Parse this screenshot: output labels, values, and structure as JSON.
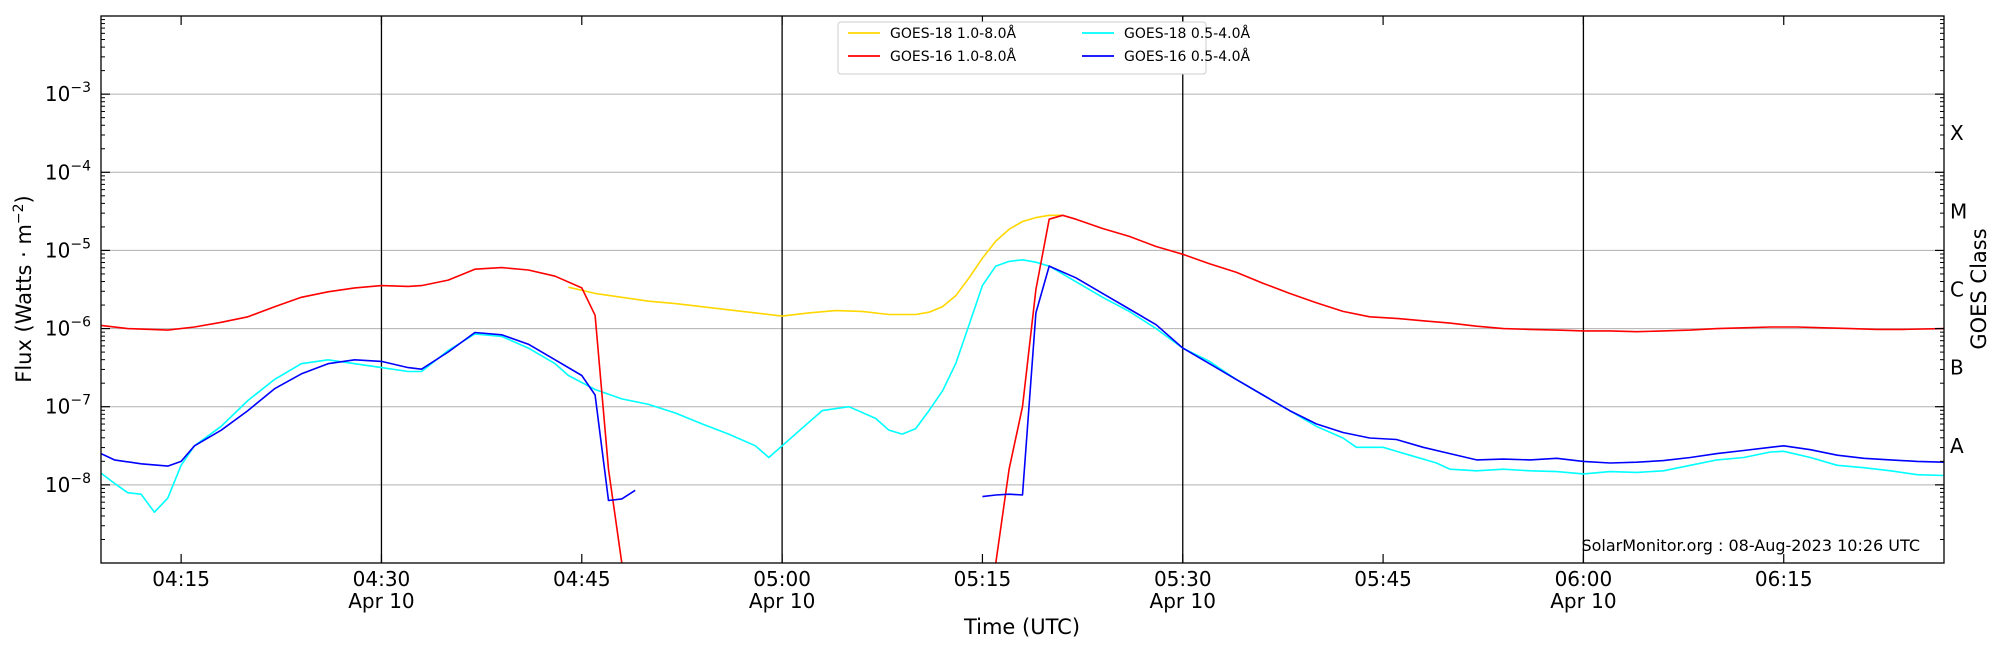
{
  "chart_data": {
    "type": "line",
    "xlabel": "Time (UTC)",
    "ylabel_main": "Flux (Watts · m",
    "ylabel_exp": "−2",
    "ylabel_close": ")",
    "right_label": "GOES Class",
    "credit": "SolarMonitor.org : 08-Aug-2023 10:26 UTC",
    "y_scale": "log",
    "ylim": [
      1e-09,
      0.01
    ],
    "xlim_minutes": [
      "04:09",
      "06:27"
    ],
    "grid": "horizontal at decades; vertical at 30-minute marks",
    "y_ticks": [
      {
        "value": -8,
        "base": "10",
        "exp": "−8"
      },
      {
        "value": -7,
        "base": "10",
        "exp": "−7"
      },
      {
        "value": -6,
        "base": "10",
        "exp": "−6"
      },
      {
        "value": -5,
        "base": "10",
        "exp": "−5"
      },
      {
        "value": -4,
        "base": "10",
        "exp": "−4"
      },
      {
        "value": -3,
        "base": "10",
        "exp": "−3"
      }
    ],
    "x_ticks": [
      {
        "time": "04:15",
        "label": "04:15",
        "date": ""
      },
      {
        "time": "04:30",
        "label": "04:30",
        "date": "Apr 10"
      },
      {
        "time": "04:45",
        "label": "04:45",
        "date": ""
      },
      {
        "time": "05:00",
        "label": "05:00",
        "date": "Apr 10"
      },
      {
        "time": "05:15",
        "label": "05:15",
        "date": ""
      },
      {
        "time": "05:30",
        "label": "05:30",
        "date": "Apr 10"
      },
      {
        "time": "05:45",
        "label": "05:45",
        "date": ""
      },
      {
        "time": "06:00",
        "label": "06:00",
        "date": "Apr 10"
      },
      {
        "time": "06:15",
        "label": "06:15",
        "date": ""
      }
    ],
    "goes_classes": [
      {
        "label": "A",
        "value": -7.5
      },
      {
        "label": "B",
        "value": -6.5
      },
      {
        "label": "C",
        "value": -5.5
      },
      {
        "label": "M",
        "value": -4.5
      },
      {
        "label": "X",
        "value": -3.5
      }
    ],
    "legend_position": "top-center",
    "legend": [
      {
        "name": "GOES-18 1.0-8.0Å",
        "color": "#ffd700"
      },
      {
        "name": "GOES-18 0.5-4.0Å",
        "color": "#00ffff"
      },
      {
        "name": "GOES-16 1.0-8.0Å",
        "color": "#ff0000"
      },
      {
        "name": "GOES-16 0.5-4.0Å",
        "color": "#0000ff"
      }
    ],
    "series": [
      {
        "name": "GOES-18 1.0-8.0Å",
        "color": "#ffd700",
        "points": [
          [
            "04:44",
            -5.47
          ],
          [
            "04:46",
            -5.55
          ],
          [
            "04:48",
            -5.6
          ],
          [
            "04:50",
            -5.65
          ],
          [
            "04:52",
            -5.68
          ],
          [
            "04:54",
            -5.72
          ],
          [
            "04:56",
            -5.76
          ],
          [
            "04:58",
            -5.8
          ],
          [
            "05:00",
            -5.84
          ],
          [
            "05:02",
            -5.8
          ],
          [
            "05:04",
            -5.77
          ],
          [
            "05:06",
            -5.78
          ],
          [
            "05:08",
            -5.82
          ],
          [
            "05:10",
            -5.82
          ],
          [
            "05:11",
            -5.79
          ],
          [
            "05:12",
            -5.72
          ],
          [
            "05:13",
            -5.58
          ],
          [
            "05:14",
            -5.35
          ],
          [
            "05:15",
            -5.1
          ],
          [
            "05:16",
            -4.88
          ],
          [
            "05:17",
            -4.73
          ],
          [
            "05:18",
            -4.63
          ],
          [
            "05:19",
            -4.58
          ],
          [
            "05:20",
            -4.55
          ],
          [
            "05:21",
            -4.55
          ]
        ]
      },
      {
        "name": "GOES-18 0.5-4.0Å",
        "color": "#00ffff",
        "points": [
          [
            "04:09",
            -7.85
          ],
          [
            "04:10",
            -7.98
          ],
          [
            "04:11",
            -8.1
          ],
          [
            "04:12",
            -8.12
          ],
          [
            "04:13",
            -8.35
          ],
          [
            "04:14",
            -8.17
          ],
          [
            "04:15",
            -7.75
          ],
          [
            "04:16",
            -7.5
          ],
          [
            "04:18",
            -7.25
          ],
          [
            "04:20",
            -6.92
          ],
          [
            "04:22",
            -6.65
          ],
          [
            "04:24",
            -6.45
          ],
          [
            "04:26",
            -6.4
          ],
          [
            "04:28",
            -6.45
          ],
          [
            "04:30",
            -6.5
          ],
          [
            "04:32",
            -6.55
          ],
          [
            "04:33",
            -6.55
          ],
          [
            "04:35",
            -6.28
          ],
          [
            "04:37",
            -6.07
          ],
          [
            "04:39",
            -6.1
          ],
          [
            "04:41",
            -6.25
          ],
          [
            "04:43",
            -6.45
          ],
          [
            "04:44",
            -6.6
          ],
          [
            "04:46",
            -6.78
          ],
          [
            "04:48",
            -6.9
          ],
          [
            "04:50",
            -6.97
          ],
          [
            "04:52",
            -7.08
          ],
          [
            "04:54",
            -7.22
          ],
          [
            "04:56",
            -7.35
          ],
          [
            "04:58",
            -7.5
          ],
          [
            "04:59",
            -7.65
          ],
          [
            "05:00",
            -7.5
          ],
          [
            "05:02",
            -7.2
          ],
          [
            "05:03",
            -7.05
          ],
          [
            "05:05",
            -7.0
          ],
          [
            "05:07",
            -7.15
          ],
          [
            "05:08",
            -7.3
          ],
          [
            "05:09",
            -7.35
          ],
          [
            "05:10",
            -7.28
          ],
          [
            "05:11",
            -7.05
          ],
          [
            "05:12",
            -6.8
          ],
          [
            "05:13",
            -6.45
          ],
          [
            "05:14",
            -5.95
          ],
          [
            "05:15",
            -5.45
          ],
          [
            "05:16",
            -5.2
          ],
          [
            "05:17",
            -5.14
          ],
          [
            "05:18",
            -5.12
          ],
          [
            "05:19",
            -5.15
          ],
          [
            "05:20",
            -5.2
          ],
          [
            "05:22",
            -5.4
          ],
          [
            "05:24",
            -5.6
          ],
          [
            "05:26",
            -5.78
          ],
          [
            "05:28",
            -6.0
          ],
          [
            "05:30",
            -6.25
          ],
          [
            "05:32",
            -6.42
          ],
          [
            "05:34",
            -6.65
          ],
          [
            "05:36",
            -6.85
          ],
          [
            "05:38",
            -7.05
          ],
          [
            "05:40",
            -7.25
          ],
          [
            "05:42",
            -7.4
          ],
          [
            "05:43",
            -7.52
          ],
          [
            "05:45",
            -7.52
          ],
          [
            "05:47",
            -7.62
          ],
          [
            "05:49",
            -7.72
          ],
          [
            "05:50",
            -7.8
          ],
          [
            "05:52",
            -7.82
          ],
          [
            "05:54",
            -7.8
          ],
          [
            "05:56",
            -7.82
          ],
          [
            "05:58",
            -7.83
          ],
          [
            "06:00",
            -7.86
          ],
          [
            "06:02",
            -7.83
          ],
          [
            "06:04",
            -7.84
          ],
          [
            "06:06",
            -7.82
          ],
          [
            "06:08",
            -7.75
          ],
          [
            "06:10",
            -7.68
          ],
          [
            "06:12",
            -7.65
          ],
          [
            "06:14",
            -7.58
          ],
          [
            "06:15",
            -7.57
          ],
          [
            "06:17",
            -7.65
          ],
          [
            "06:19",
            -7.75
          ],
          [
            "06:21",
            -7.78
          ],
          [
            "06:23",
            -7.82
          ],
          [
            "06:25",
            -7.87
          ],
          [
            "06:27",
            -7.88
          ]
        ]
      },
      {
        "name": "GOES-16 1.0-8.0Å",
        "color": "#ff0000",
        "points": [
          [
            "04:09",
            -5.96
          ],
          [
            "04:11",
            -6.0
          ],
          [
            "04:14",
            -6.02
          ],
          [
            "04:16",
            -5.98
          ],
          [
            "04:18",
            -5.92
          ],
          [
            "04:20",
            -5.85
          ],
          [
            "04:22",
            -5.72
          ],
          [
            "04:24",
            -5.6
          ],
          [
            "04:26",
            -5.53
          ],
          [
            "04:28",
            -5.48
          ],
          [
            "04:30",
            -5.45
          ],
          [
            "04:32",
            -5.46
          ],
          [
            "04:33",
            -5.45
          ],
          [
            "04:35",
            -5.38
          ],
          [
            "04:37",
            -5.24
          ],
          [
            "04:39",
            -5.22
          ],
          [
            "04:41",
            -5.25
          ],
          [
            "04:43",
            -5.33
          ],
          [
            "04:45",
            -5.48
          ],
          [
            "04:46",
            -5.83
          ],
          [
            "04:47",
            -7.8
          ],
          [
            "04:48",
            -9.0
          ],
          null,
          [
            "05:16",
            -9.0
          ],
          [
            "05:17",
            -7.8
          ],
          [
            "05:18",
            -7.0
          ],
          [
            "05:19",
            -5.5
          ],
          [
            "05:20",
            -4.6
          ],
          [
            "05:21",
            -4.55
          ],
          [
            "05:22",
            -4.6
          ],
          [
            "05:24",
            -4.72
          ],
          [
            "05:26",
            -4.82
          ],
          [
            "05:28",
            -4.95
          ],
          [
            "05:30",
            -5.05
          ],
          [
            "05:32",
            -5.17
          ],
          [
            "05:34",
            -5.28
          ],
          [
            "05:36",
            -5.42
          ],
          [
            "05:38",
            -5.55
          ],
          [
            "05:40",
            -5.67
          ],
          [
            "05:42",
            -5.78
          ],
          [
            "05:44",
            -5.85
          ],
          [
            "05:46",
            -5.87
          ],
          [
            "05:48",
            -5.9
          ],
          [
            "05:50",
            -5.93
          ],
          [
            "05:52",
            -5.97
          ],
          [
            "05:54",
            -6.0
          ],
          [
            "05:56",
            -6.01
          ],
          [
            "05:58",
            -6.02
          ],
          [
            "06:00",
            -6.03
          ],
          [
            "06:02",
            -6.03
          ],
          [
            "06:04",
            -6.04
          ],
          [
            "06:06",
            -6.03
          ],
          [
            "06:08",
            -6.02
          ],
          [
            "06:10",
            -6.0
          ],
          [
            "06:12",
            -5.99
          ],
          [
            "06:14",
            -5.98
          ],
          [
            "06:16",
            -5.98
          ],
          [
            "06:18",
            -5.99
          ],
          [
            "06:20",
            -6.0
          ],
          [
            "06:22",
            -6.01
          ],
          [
            "06:24",
            -6.01
          ],
          [
            "06:27",
            -6.0
          ]
        ]
      },
      {
        "name": "GOES-16 0.5-4.0Å",
        "color": "#0000ff",
        "points": [
          [
            "04:09",
            -7.6
          ],
          [
            "04:10",
            -7.68
          ],
          [
            "04:12",
            -7.73
          ],
          [
            "04:14",
            -7.76
          ],
          [
            "04:15",
            -7.7
          ],
          [
            "04:16",
            -7.5
          ],
          [
            "04:18",
            -7.3
          ],
          [
            "04:20",
            -7.05
          ],
          [
            "04:22",
            -6.77
          ],
          [
            "04:24",
            -6.58
          ],
          [
            "04:26",
            -6.45
          ],
          [
            "04:28",
            -6.4
          ],
          [
            "04:30",
            -6.42
          ],
          [
            "04:32",
            -6.5
          ],
          [
            "04:33",
            -6.52
          ],
          [
            "04:35",
            -6.3
          ],
          [
            "04:37",
            -6.05
          ],
          [
            "04:39",
            -6.08
          ],
          [
            "04:41",
            -6.2
          ],
          [
            "04:43",
            -6.4
          ],
          [
            "04:45",
            -6.6
          ],
          [
            "04:46",
            -6.85
          ],
          [
            "04:47",
            -8.2
          ],
          [
            "04:48",
            -8.18
          ],
          [
            "04:49",
            -8.07
          ],
          null,
          [
            "05:15",
            -8.15
          ],
          [
            "05:16",
            -8.13
          ],
          [
            "05:17",
            -8.12
          ],
          [
            "05:18",
            -8.13
          ],
          [
            "05:19",
            -5.8
          ],
          [
            "05:20",
            -5.2
          ],
          [
            "05:22",
            -5.35
          ],
          [
            "05:24",
            -5.55
          ],
          [
            "05:26",
            -5.75
          ],
          [
            "05:28",
            -5.95
          ],
          [
            "05:30",
            -6.25
          ],
          [
            "05:32",
            -6.45
          ],
          [
            "05:34",
            -6.65
          ],
          [
            "05:36",
            -6.85
          ],
          [
            "05:38",
            -7.05
          ],
          [
            "05:40",
            -7.22
          ],
          [
            "05:42",
            -7.33
          ],
          [
            "05:44",
            -7.4
          ],
          [
            "05:46",
            -7.42
          ],
          [
            "05:48",
            -7.52
          ],
          [
            "05:50",
            -7.6
          ],
          [
            "05:52",
            -7.68
          ],
          [
            "05:54",
            -7.67
          ],
          [
            "05:56",
            -7.68
          ],
          [
            "05:58",
            -7.66
          ],
          [
            "06:00",
            -7.7
          ],
          [
            "06:02",
            -7.72
          ],
          [
            "06:04",
            -7.71
          ],
          [
            "06:06",
            -7.69
          ],
          [
            "06:08",
            -7.65
          ],
          [
            "06:10",
            -7.6
          ],
          [
            "06:12",
            -7.56
          ],
          [
            "06:14",
            -7.52
          ],
          [
            "06:15",
            -7.5
          ],
          [
            "06:17",
            -7.55
          ],
          [
            "06:19",
            -7.62
          ],
          [
            "06:21",
            -7.66
          ],
          [
            "06:23",
            -7.68
          ],
          [
            "06:25",
            -7.7
          ],
          [
            "06:27",
            -7.71
          ]
        ]
      }
    ]
  }
}
